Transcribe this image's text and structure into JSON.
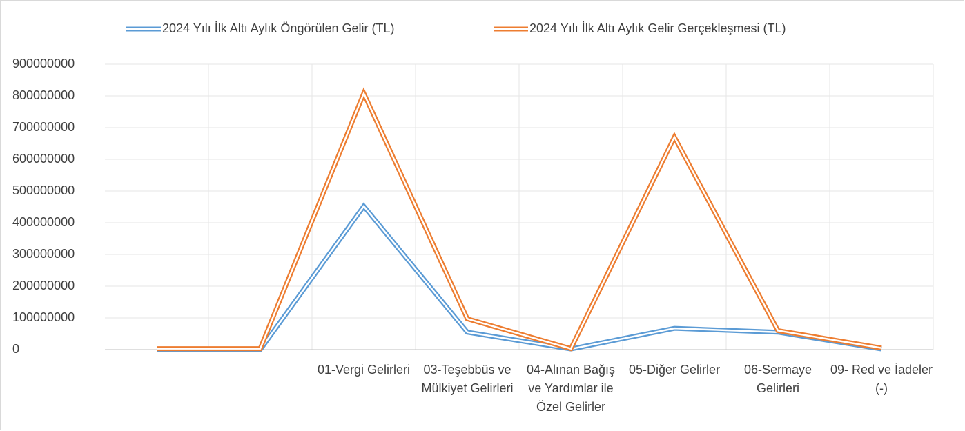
{
  "chart_data": {
    "type": "line",
    "categories": [
      null,
      null,
      "01-Vergi Gelirleri",
      "03-Teşebbüs ve Mülkiyet Gelirleri",
      "04-Alınan Bağış ve Yardımlar ile Özel Gelirler",
      "05-Diğer Gelirler",
      "06-Sermaye Gelirleri",
      "09- Red ve İadeler  (-)"
    ],
    "series": [
      {
        "name": "2024 Yılı İlk Altı Aylık Öngörülen Gelir (TL)",
        "color": "#5b9bd5",
        "values": [
          0,
          0,
          452000000,
          55000000,
          2000000,
          67000000,
          55000000,
          2000000
        ]
      },
      {
        "name": "2024 Yılı İlk Altı Aylık Gelir Gerçekleşmesi (TL)",
        "color": "#ed7d31",
        "values": [
          3000000,
          3000000,
          808000000,
          97000000,
          3000000,
          670000000,
          60000000,
          5000000
        ]
      }
    ],
    "ylim": [
      0,
      900000000
    ],
    "yticks": [
      0,
      100000000,
      200000000,
      300000000,
      400000000,
      500000000,
      600000000,
      700000000,
      800000000,
      900000000
    ],
    "grid": true,
    "legend": "top"
  }
}
